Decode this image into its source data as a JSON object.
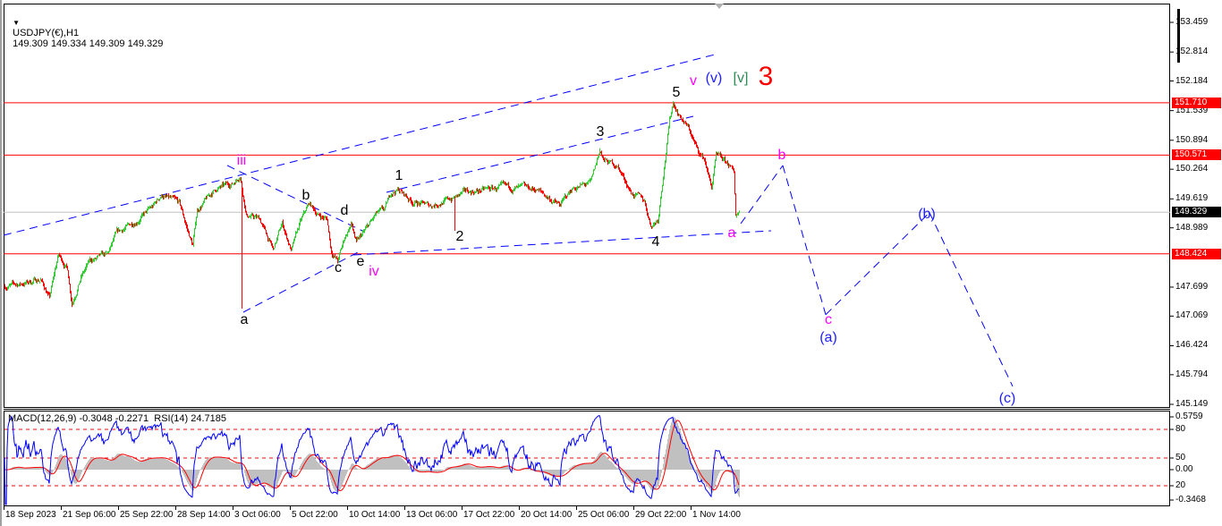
{
  "header": {
    "menu_icon": "triangle-down-icon",
    "symbol": "USDJPY(€),H1",
    "ohlc": "149.309 149.334 149.309 149.329",
    "indicator_title": "MACD(12,26,9) -0.3048 -0.2271  RSI(14) 24.7185"
  },
  "chart_data": {
    "type": "candlestick",
    "symbol": "USDJPY(€)",
    "timeframe": "H1",
    "last": {
      "open": 149.309,
      "high": 149.334,
      "low": 149.309,
      "close": 149.329
    },
    "colors": {
      "up": "#32cd32",
      "down": "#ff0000",
      "level": "#ff0000",
      "trendline": "#0000ff",
      "current": "#c0c0c0"
    },
    "price_axis": [
      "153.459",
      "152.814",
      "152.184",
      "151.539",
      "150.894",
      "150.264",
      "149.619",
      "148.989",
      "147.699",
      "147.069",
      "146.424",
      "145.794",
      "145.149"
    ],
    "ylim": [
      145.149,
      153.459
    ],
    "levels": [
      "151.710",
      "150.571",
      "148.424"
    ],
    "current_price": "149.329",
    "time_axis": [
      {
        "label": "18 Sep 2023",
        "time": "2023-09-18 00:00"
      },
      {
        "label": "21 Sep 06:00",
        "time": "2023-09-21 06:00"
      },
      {
        "label": "25 Sep 22:00",
        "time": "2023-09-25 22:00"
      },
      {
        "label": "28 Sep 14:00",
        "time": "2023-09-28 14:00"
      },
      {
        "label": "3 Oct 06:00",
        "time": "2023-10-03 06:00"
      },
      {
        "label": "5 Oct 22:00",
        "time": "2023-10-05 22:00"
      },
      {
        "label": "10 Oct 14:00",
        "time": "2023-10-10 14:00"
      },
      {
        "label": "13 Oct 06:00",
        "time": "2023-10-13 06:00"
      },
      {
        "label": "17 Oct 22:00",
        "time": "2023-10-17 22:00"
      },
      {
        "label": "20 Oct 14:00",
        "time": "2023-10-20 14:00"
      },
      {
        "label": "25 Oct 06:00",
        "time": "2023-10-25 06:00"
      },
      {
        "label": "29 Oct 22:00",
        "time": "2023-10-29 22:00"
      },
      {
        "label": "1 Nov 14:00",
        "time": "2023-11-01 14:00"
      }
    ],
    "price_path": [
      [
        "2023-09-18 01:00",
        147.717
      ],
      [
        "2023-09-18 20:00",
        147.756
      ],
      [
        "2023-09-20 02:00",
        147.873
      ],
      [
        "2023-09-20 14:00",
        147.464
      ],
      [
        "2023-09-21 02:00",
        148.399
      ],
      [
        "2023-09-21 18:00",
        148.107
      ],
      [
        "2023-09-22 03:00",
        147.367
      ],
      [
        "2023-09-22 20:00",
        147.909
      ],
      [
        "2023-09-23 14:00",
        148.262
      ],
      [
        "2023-09-25 01:00",
        148.399
      ],
      [
        "2023-09-25 18:00",
        148.846
      ],
      [
        "2023-09-26 16:00",
        149.119
      ],
      [
        "2023-09-27 12:00",
        149.43
      ],
      [
        "2023-09-27 22:00",
        149.703
      ],
      [
        "2023-09-28 21:00",
        149.508
      ],
      [
        "2023-09-29 23:00",
        148.593
      ],
      [
        "2023-09-30 08:00",
        149.372
      ],
      [
        "2023-10-01 19:00",
        149.82
      ],
      [
        "2023-10-03 06:00",
        149.956
      ],
      [
        "2023-10-03 14:00",
        150.151
      ],
      [
        "2023-10-03 21:00",
        149.275
      ],
      [
        "2023-10-04 12:00",
        149.177
      ],
      [
        "2023-10-05 03:00",
        148.496
      ],
      [
        "2023-10-05 13:00",
        149.08
      ],
      [
        "2023-10-06 00:00",
        148.496
      ],
      [
        "2023-10-06 17:00",
        149.08
      ],
      [
        "2023-10-07 11:00",
        149.508
      ],
      [
        "2023-10-08 04:00",
        149.275
      ],
      [
        "2023-10-08 22:00",
        149.177
      ],
      [
        "2023-10-09 06:00",
        148.496
      ],
      [
        "2023-10-09 19:00",
        148.262
      ],
      [
        "2023-10-10 09:00",
        148.788
      ],
      [
        "2023-10-10 18:00",
        149.08
      ],
      [
        "2023-10-11 00:00",
        148.652
      ],
      [
        "2023-10-11 07:00",
        148.846
      ],
      [
        "2023-10-11 12:00",
        148.983
      ],
      [
        "2023-10-11 22:00",
        149.275
      ],
      [
        "2023-10-12 08:00",
        149.372
      ],
      [
        "2023-10-12 15:00",
        149.761
      ],
      [
        "2023-10-12 23:00",
        149.82
      ],
      [
        "2023-10-13 20:00",
        149.566
      ],
      [
        "2023-10-15 07:00",
        149.469
      ],
      [
        "2023-10-17 03:00",
        149.625
      ],
      [
        "2023-10-18 02:00",
        149.761
      ],
      [
        "2023-10-19 18:00",
        149.858
      ],
      [
        "2023-10-22 01:00",
        149.82
      ],
      [
        "2023-10-23 21:00",
        149.469
      ],
      [
        "2023-10-24 23:00",
        149.858
      ],
      [
        "2023-10-26 10:00",
        149.956
      ],
      [
        "2023-10-27 04:00",
        150.676
      ],
      [
        "2023-10-27 12:00",
        150.442
      ],
      [
        "2023-10-28 14:00",
        150.345
      ],
      [
        "2023-10-29 17:00",
        149.761
      ],
      [
        "2023-10-30 10:00",
        149.566
      ],
      [
        "2023-10-30 17:00",
        149.041
      ],
      [
        "2023-10-31 01:00",
        149.177
      ],
      [
        "2023-10-31 08:00",
        150.345
      ],
      [
        "2023-10-31 14:00",
        151.318
      ],
      [
        "2023-10-31 18:00",
        151.71
      ],
      [
        "2023-11-01 02:00",
        151.415
      ],
      [
        "2023-11-01 12:00",
        151.123
      ],
      [
        "2023-11-01 22:00",
        150.637
      ],
      [
        "2023-11-02 05:00",
        150.481
      ],
      [
        "2023-11-02 13:00",
        149.858
      ],
      [
        "2023-11-02 18:00",
        150.54
      ],
      [
        "2023-11-03 09:00",
        150.345
      ],
      [
        "2023-11-03 14:00",
        150.151
      ],
      [
        "2023-11-03 16:00",
        149.275
      ],
      [
        "2023-11-03 20:00",
        149.329
      ]
    ],
    "spikes": [
      {
        "time": "2023-10-03 16:00",
        "low": 147.231
      },
      {
        "time": "2023-10-17 08:00",
        "low": 148.924
      },
      {
        "time": "2023-10-27 04:00",
        "high": 150.72
      }
    ],
    "projection": [
      [
        "2023-11-03 22:00",
        149.08
      ],
      [
        "2023-11-05 21:00",
        150.345
      ],
      [
        "2023-11-07 21:00",
        147.1
      ],
      [
        "2023-11-12 17:00",
        149.32
      ],
      [
        "2023-11-16 14:00",
        145.54
      ]
    ],
    "wave_labels": [
      {
        "text": "iii"
      },
      {
        "text": "a"
      },
      {
        "text": "b"
      },
      {
        "text": "c"
      },
      {
        "text": "d"
      },
      {
        "text": "e"
      },
      {
        "text": "iv"
      },
      {
        "text": "1"
      },
      {
        "text": "2"
      },
      {
        "text": "3"
      },
      {
        "text": "4"
      },
      {
        "text": "5"
      },
      {
        "text": "v"
      },
      {
        "text": "(v)"
      },
      {
        "text": "[v]"
      },
      {
        "text": "3"
      },
      {
        "text": "a"
      },
      {
        "text": "b"
      },
      {
        "text": "c"
      },
      {
        "text": "(a)"
      },
      {
        "text": "(b)"
      },
      {
        "text": "(c)"
      }
    ],
    "indicators": {
      "macd": {
        "params": "12,26,9",
        "main": -0.3048,
        "signal": -0.2271,
        "axis": [
          "0.5759",
          "0.00",
          "-0.3468"
        ]
      },
      "rsi": {
        "period": 14,
        "value": 24.7185,
        "levels": [
          "80",
          "50",
          "20"
        ]
      }
    }
  }
}
